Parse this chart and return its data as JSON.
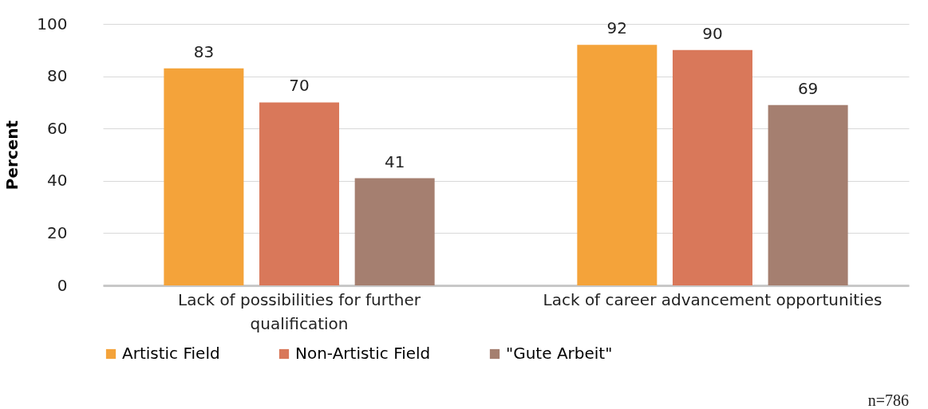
{
  "chart_data": {
    "type": "bar",
    "ylabel": "Percent",
    "categories": [
      "Lack of possibilities for further qualification",
      "Lack of career advancement opportunities"
    ],
    "series": [
      {
        "name": "Artistic Field",
        "color": "#f4a33a",
        "values": [
          83,
          92
        ]
      },
      {
        "name": "Non-Artistic Field",
        "color": "#d9785a",
        "values": [
          70,
          90
        ]
      },
      {
        "name": "\"Gute Arbeit\"",
        "color": "#a57f70",
        "values": [
          41,
          69
        ]
      }
    ],
    "ylim": [
      0,
      100
    ],
    "yticks": [
      0,
      20,
      40,
      60,
      80,
      100
    ],
    "grid": "y",
    "legend": "bottom",
    "data_labels": true,
    "annotations": [
      "n=786"
    ]
  }
}
